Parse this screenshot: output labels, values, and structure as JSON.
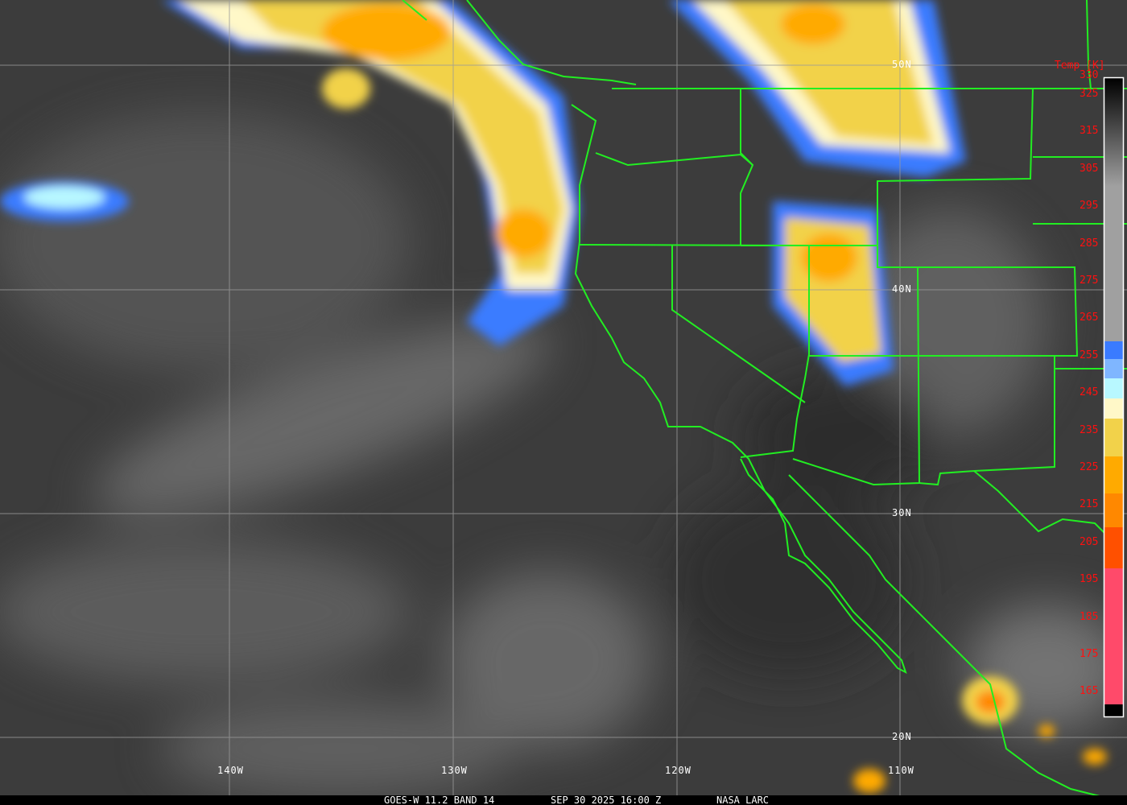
{
  "caption": {
    "satellite": "GOES-W 11.2 BAND 14",
    "datetime": "SEP 30 2025 16:00 Z",
    "source": "NASA LARC"
  },
  "longitude_labels": [
    "140W",
    "130W",
    "120W",
    "110W"
  ],
  "latitude_labels": [
    "50N",
    "40N",
    "30N",
    "20N"
  ],
  "colorbar": {
    "title": "Temp [K]",
    "ticks": [
      "330",
      "325",
      "315",
      "305",
      "295",
      "285",
      "275",
      "265",
      "255",
      "245",
      "235",
      "225",
      "215",
      "205",
      "195",
      "185",
      "175",
      "165"
    ],
    "colors": {
      "blue": "#3a7bff",
      "light_blue": "#7fb6ff",
      "cyan": "#b8f8ff",
      "pale_yellow": "#fff8c8",
      "yellow": "#f2d24a",
      "orange": "#ffaa00",
      "dark_orange": "#ff8800",
      "red_orange": "#ff5000",
      "pink": "#ff4a6a"
    }
  },
  "colors": {
    "borders": "#22ee22",
    "grid": "#9a9a9a",
    "background": "#3a3a3a"
  }
}
